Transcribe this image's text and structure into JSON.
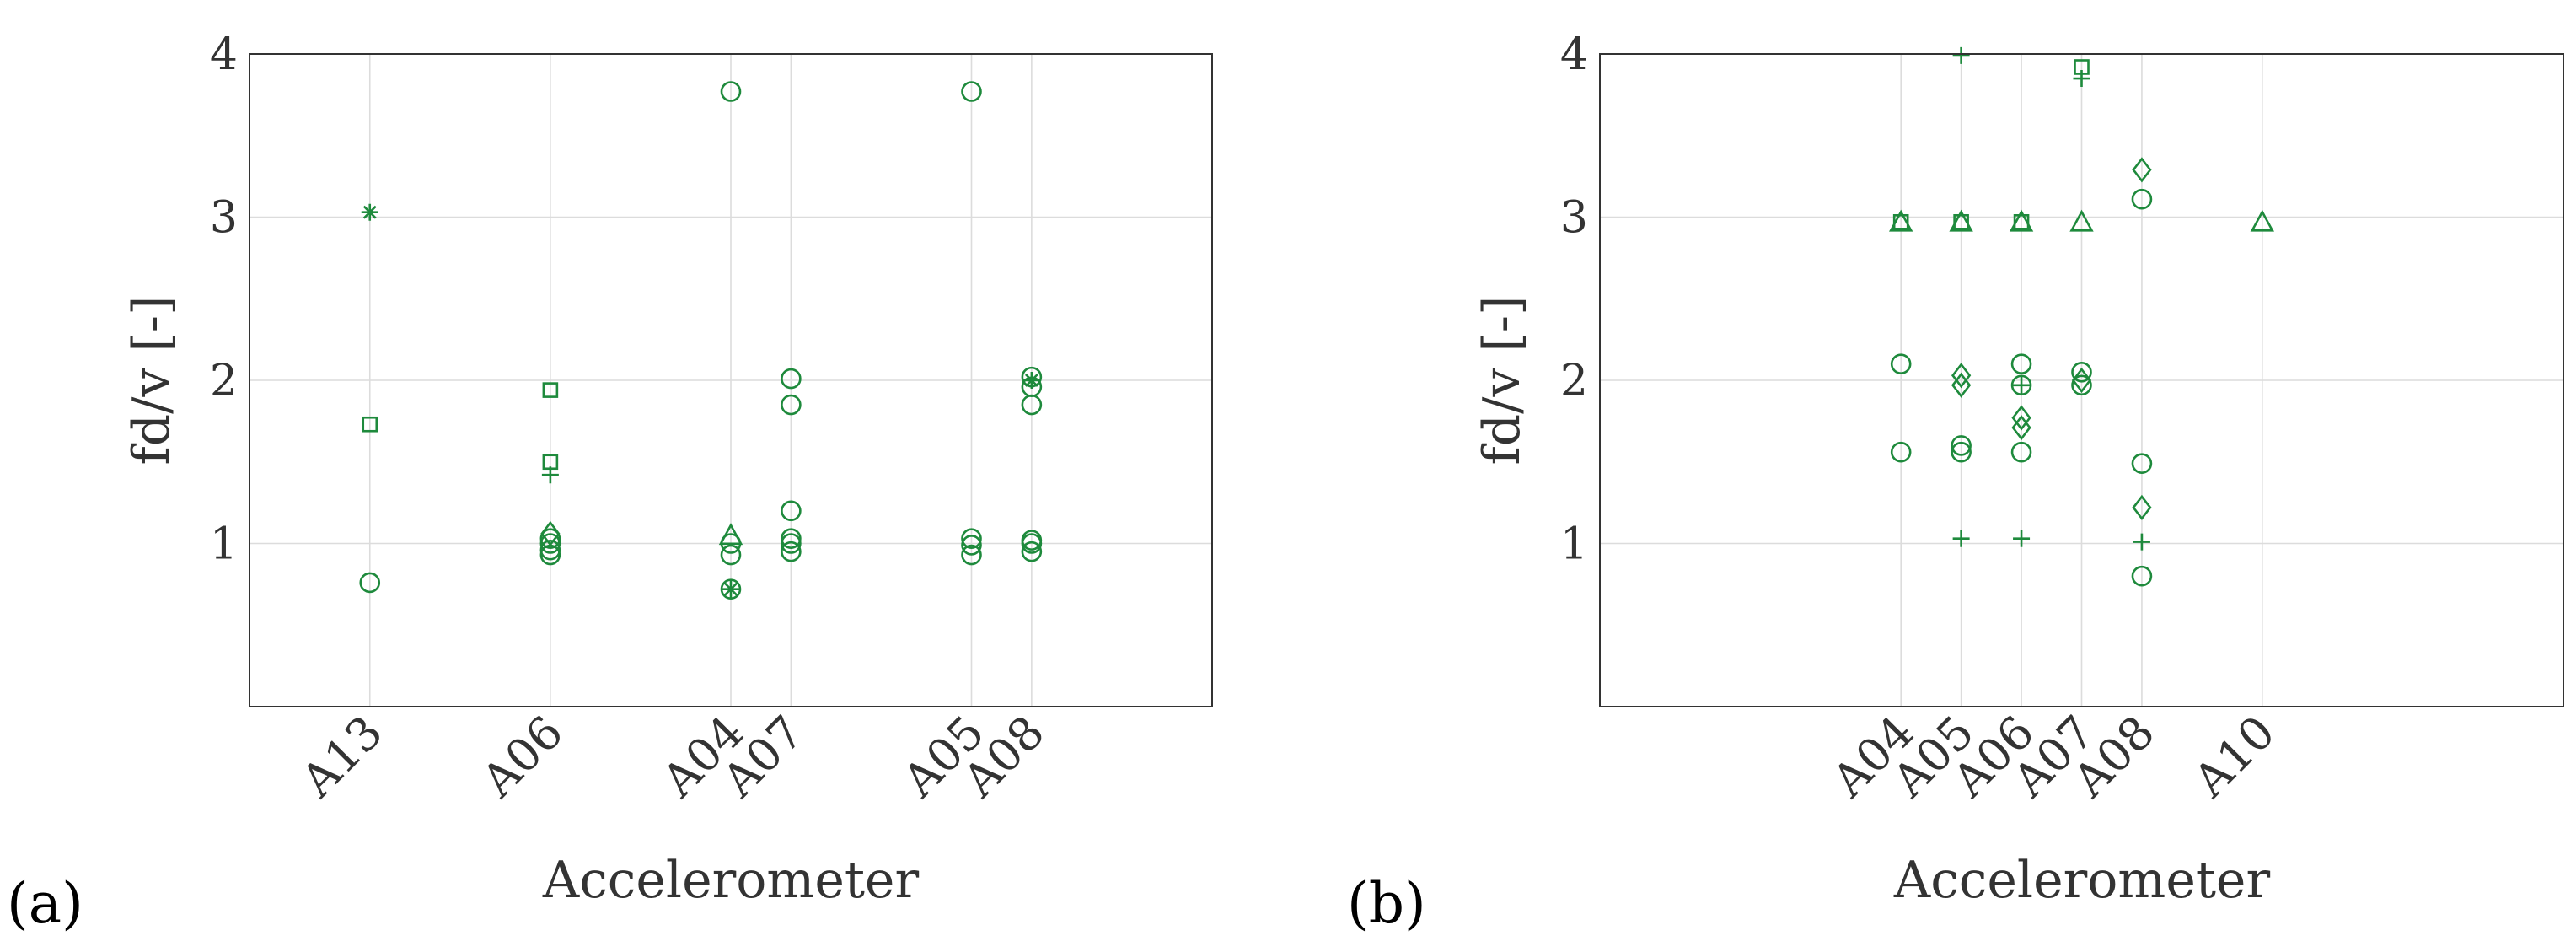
{
  "colors": {
    "marker": "#1e8a3c",
    "axis": "#333333",
    "grid": "#dcdcdc"
  },
  "panels": [
    {
      "label": "(a)",
      "xlabel": "Accelerometer",
      "ylabel": "fd/v [-]"
    },
    {
      "label": "(b)",
      "xlabel": "Accelerometer",
      "ylabel": "fd/v [-]"
    }
  ],
  "chart_data": [
    {
      "type": "scatter",
      "title": "",
      "xlabel": "Accelerometer",
      "ylabel": "fd/v [-]",
      "ylim": [
        0,
        4
      ],
      "xlim": [
        0,
        16
      ],
      "grid": true,
      "yticks": [
        "1",
        "2",
        "3",
        "4"
      ],
      "categories": [
        {
          "label": "A13",
          "x": 2
        },
        {
          "label": "A06",
          "x": 5
        },
        {
          "label": "A04",
          "x": 8
        },
        {
          "label": "A07",
          "x": 9
        },
        {
          "label": "A05",
          "x": 12
        },
        {
          "label": "A08",
          "x": 13
        }
      ],
      "points": [
        {
          "x": "A13",
          "y": 0.76,
          "marker": "circle"
        },
        {
          "x": "A13",
          "y": 1.73,
          "marker": "square"
        },
        {
          "x": "A13",
          "y": 3.03,
          "marker": "asterisk"
        },
        {
          "x": "A06",
          "y": 0.93,
          "marker": "circle"
        },
        {
          "x": "A06",
          "y": 0.96,
          "marker": "circle"
        },
        {
          "x": "A06",
          "y": 1.0,
          "marker": "circle"
        },
        {
          "x": "A06",
          "y": 1.03,
          "marker": "circle"
        },
        {
          "x": "A06",
          "y": 1.06,
          "marker": "diamond"
        },
        {
          "x": "A06",
          "y": 1.42,
          "marker": "plus"
        },
        {
          "x": "A06",
          "y": 1.5,
          "marker": "square"
        },
        {
          "x": "A06",
          "y": 1.94,
          "marker": "square"
        },
        {
          "x": "A04",
          "y": 0.72,
          "marker": "circle"
        },
        {
          "x": "A04",
          "y": 0.72,
          "marker": "asterisk"
        },
        {
          "x": "A04",
          "y": 0.93,
          "marker": "circle"
        },
        {
          "x": "A04",
          "y": 1.0,
          "marker": "circle"
        },
        {
          "x": "A04",
          "y": 1.05,
          "marker": "triangle"
        },
        {
          "x": "A04",
          "y": 3.77,
          "marker": "circle"
        },
        {
          "x": "A07",
          "y": 0.95,
          "marker": "circle"
        },
        {
          "x": "A07",
          "y": 1.0,
          "marker": "circle"
        },
        {
          "x": "A07",
          "y": 1.03,
          "marker": "circle"
        },
        {
          "x": "A07",
          "y": 1.2,
          "marker": "circle"
        },
        {
          "x": "A07",
          "y": 1.85,
          "marker": "circle"
        },
        {
          "x": "A07",
          "y": 2.01,
          "marker": "circle"
        },
        {
          "x": "A05",
          "y": 0.93,
          "marker": "circle"
        },
        {
          "x": "A05",
          "y": 0.99,
          "marker": "circle"
        },
        {
          "x": "A05",
          "y": 1.03,
          "marker": "circle"
        },
        {
          "x": "A05",
          "y": 3.77,
          "marker": "circle"
        },
        {
          "x": "A08",
          "y": 0.95,
          "marker": "circle"
        },
        {
          "x": "A08",
          "y": 1.0,
          "marker": "circle"
        },
        {
          "x": "A08",
          "y": 1.02,
          "marker": "circle"
        },
        {
          "x": "A08",
          "y": 1.85,
          "marker": "circle"
        },
        {
          "x": "A08",
          "y": 1.96,
          "marker": "circle"
        },
        {
          "x": "A08",
          "y": 2.0,
          "marker": "asterisk"
        },
        {
          "x": "A08",
          "y": 2.02,
          "marker": "circle"
        }
      ]
    },
    {
      "type": "scatter",
      "title": "",
      "xlabel": "Accelerometer",
      "ylabel": "fd/v [-]",
      "ylim": [
        0,
        4
      ],
      "xlim": [
        0,
        16
      ],
      "grid": true,
      "yticks": [
        "1",
        "2",
        "3",
        "4"
      ],
      "categories": [
        {
          "label": "A04",
          "x": 5
        },
        {
          "label": "A05",
          "x": 6
        },
        {
          "label": "A06",
          "x": 7
        },
        {
          "label": "A07",
          "x": 8
        },
        {
          "label": "A08",
          "x": 9
        },
        {
          "label": "A10",
          "x": 11
        }
      ],
      "points": [
        {
          "x": "A04",
          "y": 1.56,
          "marker": "circle"
        },
        {
          "x": "A04",
          "y": 2.1,
          "marker": "circle"
        },
        {
          "x": "A04",
          "y": 2.97,
          "marker": "triangle"
        },
        {
          "x": "A04",
          "y": 2.97,
          "marker": "square"
        },
        {
          "x": "A05",
          "y": 1.03,
          "marker": "plus"
        },
        {
          "x": "A05",
          "y": 1.56,
          "marker": "circle"
        },
        {
          "x": "A05",
          "y": 1.6,
          "marker": "circle"
        },
        {
          "x": "A05",
          "y": 1.97,
          "marker": "diamond"
        },
        {
          "x": "A05",
          "y": 2.03,
          "marker": "diamond"
        },
        {
          "x": "A05",
          "y": 2.97,
          "marker": "triangle"
        },
        {
          "x": "A05",
          "y": 2.97,
          "marker": "square"
        },
        {
          "x": "A05",
          "y": 3.99,
          "marker": "plus"
        },
        {
          "x": "A06",
          "y": 1.03,
          "marker": "plus"
        },
        {
          "x": "A06",
          "y": 1.56,
          "marker": "circle"
        },
        {
          "x": "A06",
          "y": 1.71,
          "marker": "diamond"
        },
        {
          "x": "A06",
          "y": 1.77,
          "marker": "diamond"
        },
        {
          "x": "A06",
          "y": 1.97,
          "marker": "circle"
        },
        {
          "x": "A06",
          "y": 1.97,
          "marker": "plus"
        },
        {
          "x": "A06",
          "y": 2.1,
          "marker": "circle"
        },
        {
          "x": "A06",
          "y": 2.97,
          "marker": "triangle"
        },
        {
          "x": "A06",
          "y": 2.97,
          "marker": "square"
        },
        {
          "x": "A07",
          "y": 1.97,
          "marker": "circle"
        },
        {
          "x": "A07",
          "y": 2.0,
          "marker": "diamond"
        },
        {
          "x": "A07",
          "y": 2.05,
          "marker": "circle"
        },
        {
          "x": "A07",
          "y": 2.97,
          "marker": "triangle"
        },
        {
          "x": "A07",
          "y": 3.85,
          "marker": "plus"
        },
        {
          "x": "A07",
          "y": 3.92,
          "marker": "square"
        },
        {
          "x": "A08",
          "y": 0.8,
          "marker": "circle"
        },
        {
          "x": "A08",
          "y": 1.01,
          "marker": "plus"
        },
        {
          "x": "A08",
          "y": 1.22,
          "marker": "diamond"
        },
        {
          "x": "A08",
          "y": 1.49,
          "marker": "circle"
        },
        {
          "x": "A08",
          "y": 3.11,
          "marker": "circle"
        },
        {
          "x": "A08",
          "y": 3.29,
          "marker": "diamond"
        },
        {
          "x": "A10",
          "y": 2.97,
          "marker": "triangle"
        }
      ]
    }
  ]
}
